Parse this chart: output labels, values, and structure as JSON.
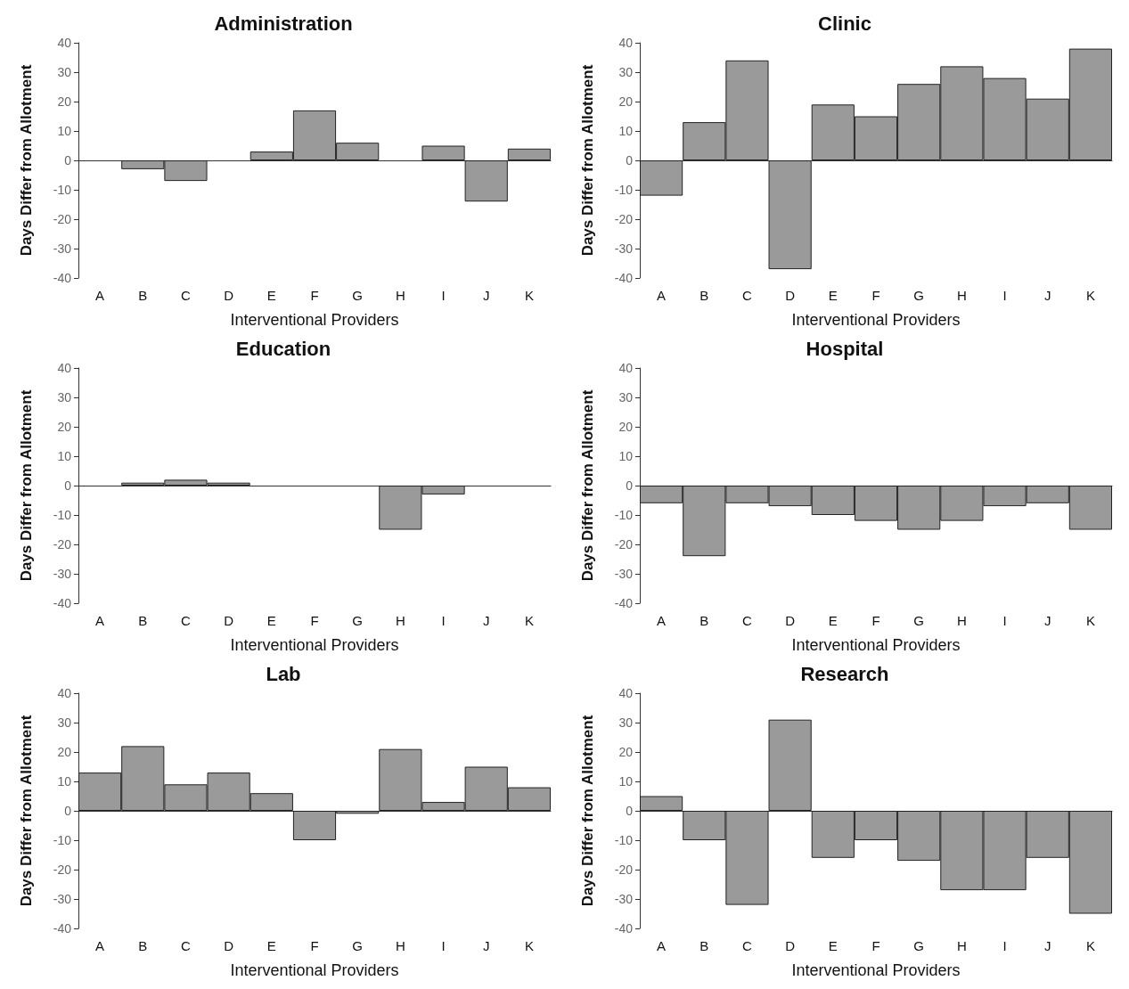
{
  "chart_data": [
    {
      "type": "bar",
      "title": "Administration",
      "xlabel": "Interventional Providers",
      "ylabel": "Days Differ from Allotment",
      "categories": [
        "A",
        "B",
        "C",
        "D",
        "E",
        "F",
        "G",
        "H",
        "I",
        "J",
        "K"
      ],
      "values": [
        0,
        -3,
        -7,
        0,
        3,
        17,
        6,
        0,
        5,
        -14,
        4
      ],
      "color": "#9a9a9a",
      "ylim": [
        -40,
        40
      ],
      "yticks": [
        -40,
        -30,
        -20,
        -10,
        0,
        10,
        20,
        30,
        40
      ]
    },
    {
      "type": "bar",
      "title": "Clinic",
      "xlabel": "Interventional Providers",
      "ylabel": "Days Differ from Allotment",
      "categories": [
        "A",
        "B",
        "C",
        "D",
        "E",
        "F",
        "G",
        "H",
        "I",
        "J",
        "K"
      ],
      "values": [
        -12,
        13,
        34,
        -37,
        19,
        15,
        26,
        32,
        28,
        21,
        38
      ],
      "color": "#9a9a9a",
      "ylim": [
        -40,
        40
      ],
      "yticks": [
        -40,
        -30,
        -20,
        -10,
        0,
        10,
        20,
        30,
        40
      ]
    },
    {
      "type": "bar",
      "title": "Education",
      "xlabel": "Interventional Providers",
      "ylabel": "Days Differ from Allotment",
      "categories": [
        "A",
        "B",
        "C",
        "D",
        "E",
        "F",
        "G",
        "H",
        "I",
        "J",
        "K"
      ],
      "values": [
        0,
        1,
        2,
        1,
        0,
        0,
        0,
        -15,
        -3,
        0,
        0
      ],
      "color": "#9a9a9a",
      "ylim": [
        -40,
        40
      ],
      "yticks": [
        -40,
        -30,
        -20,
        -10,
        0,
        10,
        20,
        30,
        40
      ]
    },
    {
      "type": "bar",
      "title": "Hospital",
      "xlabel": "Interventional Providers",
      "ylabel": "Days Differ from Allotment",
      "categories": [
        "A",
        "B",
        "C",
        "D",
        "E",
        "F",
        "G",
        "H",
        "I",
        "J",
        "K"
      ],
      "values": [
        -6,
        -24,
        -6,
        -7,
        -10,
        -12,
        -15,
        -12,
        -7,
        -6,
        -15
      ],
      "color": "#9a9a9a",
      "ylim": [
        -40,
        40
      ],
      "yticks": [
        -40,
        -30,
        -20,
        -10,
        0,
        10,
        20,
        30,
        40
      ]
    },
    {
      "type": "bar",
      "title": "Lab",
      "xlabel": "Interventional Providers",
      "ylabel": "Days Differ from Allotment",
      "categories": [
        "A",
        "B",
        "C",
        "D",
        "E",
        "F",
        "G",
        "H",
        "I",
        "J",
        "K"
      ],
      "values": [
        13,
        22,
        9,
        13,
        6,
        -10,
        -1,
        21,
        3,
        15,
        8
      ],
      "color": "#9a9a9a",
      "ylim": [
        -40,
        40
      ],
      "yticks": [
        -40,
        -30,
        -20,
        -10,
        0,
        10,
        20,
        30,
        40
      ]
    },
    {
      "type": "bar",
      "title": "Research",
      "xlabel": "Interventional Providers",
      "ylabel": "Days Differ from Allotment",
      "categories": [
        "A",
        "B",
        "C",
        "D",
        "E",
        "F",
        "G",
        "H",
        "I",
        "J",
        "K"
      ],
      "values": [
        5,
        -10,
        -32,
        31,
        -16,
        -10,
        -17,
        -27,
        -27,
        -16,
        -35
      ],
      "color": "#9a9a9a",
      "ylim": [
        -40,
        40
      ],
      "yticks": [
        -40,
        -30,
        -20,
        -10,
        0,
        10,
        20,
        30,
        40
      ]
    }
  ]
}
